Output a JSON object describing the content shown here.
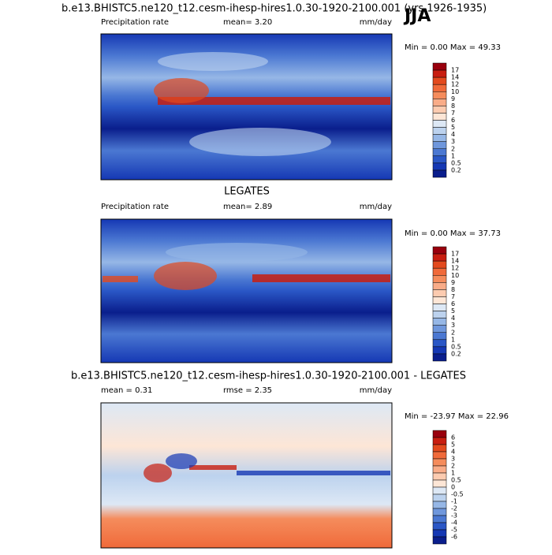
{
  "title": "b.e13.BHISTC5.ne120_t12.cesm-ihesp-hires1.0.30-1920-2100.001 (yrs 1926-1935)",
  "season": "JJA",
  "panels": [
    {
      "left": "Precipitation rate",
      "center": "mean=  3.20",
      "right": "mm/day",
      "stats": "Min =   0.00 Max =  49.33",
      "colorbar": [
        "17",
        "14",
        "12",
        "10",
        "9",
        "8",
        "7",
        "6",
        "5",
        "4",
        "3",
        "2",
        "1",
        "0.5",
        "0.2"
      ]
    },
    {
      "heading": "LEGATES",
      "left": "Precipitation rate",
      "center": "mean=   2.89",
      "right": "mm/day",
      "stats": "Min =   0.00 Max =  37.73",
      "colorbar": [
        "17",
        "14",
        "12",
        "10",
        "9",
        "8",
        "7",
        "6",
        "5",
        "4",
        "3",
        "2",
        "1",
        "0.5",
        "0.2"
      ]
    },
    {
      "heading": "b.e13.BHISTC5.ne120_t12.cesm-ihesp-hires1.0.30-1920-2100.001 - LEGATES",
      "left": "mean =  0.31",
      "center": "rmse =  2.35",
      "right": "mm/day",
      "stats": "Min = -23.97 Max =  22.96",
      "colorbar": [
        "6",
        "5",
        "4",
        "3",
        "2",
        "1",
        "0.5",
        "0",
        "-0.5",
        "-1",
        "-2",
        "-3",
        "-4",
        "-5",
        "-6"
      ]
    }
  ]
}
